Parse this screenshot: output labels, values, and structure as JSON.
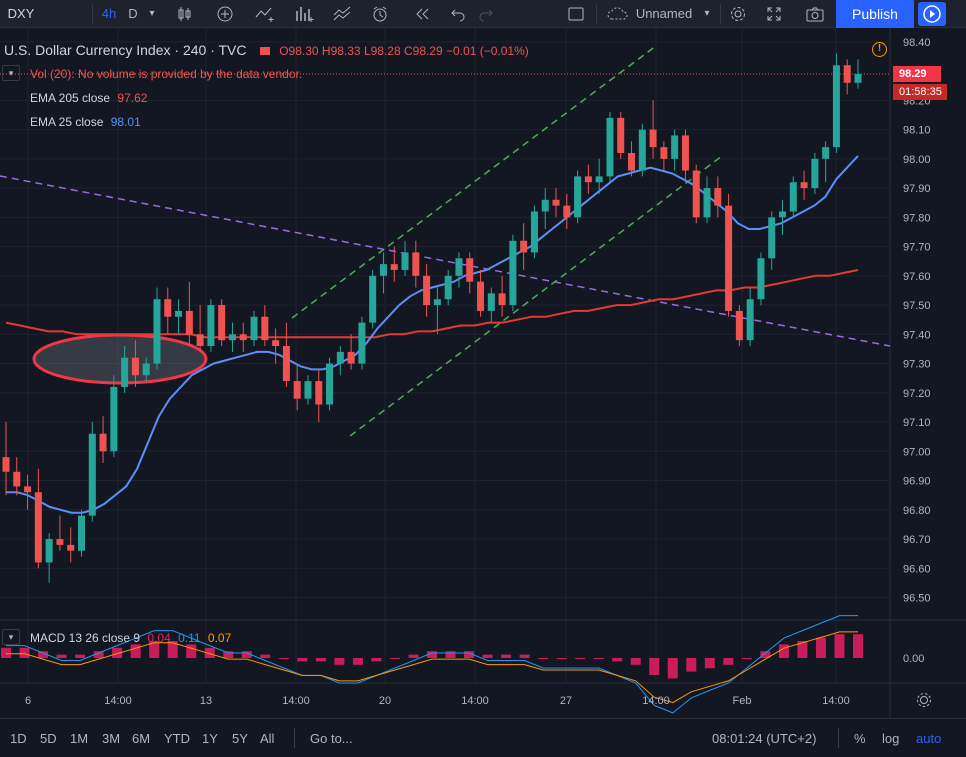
{
  "toolbar": {
    "symbol": "DXY",
    "interval": "4h",
    "d_label": "D",
    "layout_name": "Unnamed",
    "publish_label": "Publish"
  },
  "legend": {
    "title": "U.S. Dollar Currency Index · 240 · TVC",
    "open": "O98.30",
    "high": "H98.33",
    "low": "L98.28",
    "close": "C98.29",
    "change": "−0.01 (−0.01%)",
    "vol_message": "Vol (20): No volume is provided by the data vendor.",
    "ema205_label": "EMA 205 close",
    "ema205_value": "97.62",
    "ema25_label": "EMA 25 close",
    "ema25_value": "98.01",
    "macd_label": "MACD 13 26 close 9",
    "macd_v1": "0.04",
    "macd_v2": "0.11",
    "macd_v3": "0.07"
  },
  "price_axis": {
    "ticks": [
      "98.40",
      "98.20",
      "98.10",
      "98.00",
      "97.90",
      "97.80",
      "97.70",
      "97.60",
      "97.50",
      "97.40",
      "97.30",
      "97.20",
      "97.10",
      "97.00",
      "96.90",
      "96.80",
      "96.70",
      "96.60",
      "96.50"
    ],
    "current_price": "98.29",
    "countdown": "01:58:35",
    "macd_tick": "0.00"
  },
  "time_axis": {
    "labels": [
      "6",
      "14:00",
      "13",
      "14:00",
      "20",
      "14:00",
      "27",
      "14:00",
      "Feb",
      "14:00"
    ]
  },
  "bottom_bar": {
    "ranges": [
      "1D",
      "5D",
      "1M",
      "3M",
      "6M",
      "YTD",
      "1Y",
      "5Y",
      "All"
    ],
    "goto_label": "Go to...",
    "clock": "08:01:24 (UTC+2)",
    "percent_label": "%",
    "log_label": "log",
    "auto_label": "auto"
  },
  "colors": {
    "up": "#26a69a",
    "down": "#ef5350",
    "ema205": "#e53935",
    "ema25": "#5b8ff9",
    "accent": "#2962ff",
    "trend_green": "#4caf50",
    "trend_purple": "#9c6ade"
  },
  "chart_data": {
    "type": "candlestick",
    "ylim": [
      96.43,
      98.42
    ],
    "candles": [
      [
        96.98,
        97.1,
        96.85,
        96.93
      ],
      [
        96.93,
        96.98,
        96.85,
        96.88
      ],
      [
        96.88,
        96.92,
        96.8,
        96.86
      ],
      [
        96.86,
        96.94,
        96.6,
        96.62
      ],
      [
        96.62,
        96.72,
        96.55,
        96.7
      ],
      [
        96.7,
        96.78,
        96.66,
        96.68
      ],
      [
        96.68,
        96.74,
        96.62,
        96.66
      ],
      [
        96.66,
        96.8,
        96.64,
        96.78
      ],
      [
        96.78,
        97.1,
        96.76,
        97.06
      ],
      [
        97.06,
        97.12,
        96.96,
        97.0
      ],
      [
        97.0,
        97.26,
        96.98,
        97.22
      ],
      [
        97.22,
        97.36,
        97.2,
        97.32
      ],
      [
        97.32,
        97.38,
        97.22,
        97.26
      ],
      [
        97.26,
        97.32,
        97.24,
        97.3
      ],
      [
        97.3,
        97.56,
        97.28,
        97.52
      ],
      [
        97.52,
        97.56,
        97.4,
        97.46
      ],
      [
        97.46,
        97.52,
        97.4,
        97.48
      ],
      [
        97.48,
        97.58,
        97.36,
        97.4
      ],
      [
        97.4,
        97.5,
        97.34,
        97.36
      ],
      [
        97.36,
        97.52,
        97.34,
        97.5
      ],
      [
        97.5,
        97.52,
        97.36,
        97.38
      ],
      [
        97.38,
        97.44,
        97.34,
        97.4
      ],
      [
        97.4,
        97.44,
        97.34,
        97.38
      ],
      [
        97.38,
        97.48,
        97.36,
        97.46
      ],
      [
        97.46,
        97.5,
        97.36,
        97.38
      ],
      [
        97.38,
        97.42,
        97.3,
        97.36
      ],
      [
        97.36,
        97.44,
        97.22,
        97.24
      ],
      [
        97.24,
        97.3,
        97.14,
        97.18
      ],
      [
        97.18,
        97.26,
        97.16,
        97.24
      ],
      [
        97.24,
        97.28,
        97.1,
        97.16
      ],
      [
        97.16,
        97.32,
        97.14,
        97.3
      ],
      [
        97.3,
        97.36,
        97.26,
        97.34
      ],
      [
        97.34,
        97.4,
        97.28,
        97.3
      ],
      [
        97.3,
        97.46,
        97.28,
        97.44
      ],
      [
        97.44,
        97.62,
        97.42,
        97.6
      ],
      [
        97.6,
        97.68,
        97.54,
        97.64
      ],
      [
        97.64,
        97.7,
        97.58,
        97.62
      ],
      [
        97.62,
        97.72,
        97.6,
        97.68
      ],
      [
        97.68,
        97.72,
        97.56,
        97.6
      ],
      [
        97.6,
        97.64,
        97.46,
        97.5
      ],
      [
        97.5,
        97.56,
        97.4,
        97.52
      ],
      [
        97.52,
        97.62,
        97.5,
        97.6
      ],
      [
        97.6,
        97.68,
        97.56,
        97.66
      ],
      [
        97.66,
        97.68,
        97.54,
        97.58
      ],
      [
        97.58,
        97.62,
        97.46,
        97.48
      ],
      [
        97.48,
        97.56,
        97.44,
        97.54
      ],
      [
        97.54,
        97.6,
        97.46,
        97.5
      ],
      [
        97.5,
        97.74,
        97.48,
        97.72
      ],
      [
        97.72,
        97.78,
        97.62,
        97.68
      ],
      [
        97.68,
        97.84,
        97.66,
        97.82
      ],
      [
        97.82,
        97.9,
        97.76,
        97.86
      ],
      [
        97.86,
        97.9,
        97.8,
        97.84
      ],
      [
        97.84,
        97.88,
        97.76,
        97.8
      ],
      [
        97.8,
        97.96,
        97.78,
        97.94
      ],
      [
        97.94,
        97.98,
        97.88,
        97.92
      ],
      [
        97.92,
        98.0,
        97.88,
        97.94
      ],
      [
        97.94,
        98.16,
        97.92,
        98.14
      ],
      [
        98.14,
        98.16,
        98.0,
        98.02
      ],
      [
        98.02,
        98.06,
        97.94,
        97.96
      ],
      [
        97.96,
        98.12,
        97.94,
        98.1
      ],
      [
        98.1,
        98.2,
        98.0,
        98.04
      ],
      [
        98.04,
        98.06,
        97.96,
        98.0
      ],
      [
        98.0,
        98.1,
        97.96,
        98.08
      ],
      [
        98.08,
        98.1,
        97.92,
        97.96
      ],
      [
        97.96,
        97.98,
        97.78,
        97.8
      ],
      [
        97.8,
        97.94,
        97.78,
        97.9
      ],
      [
        97.9,
        97.94,
        97.8,
        97.84
      ],
      [
        97.84,
        97.88,
        97.46,
        97.48
      ],
      [
        97.48,
        97.5,
        97.36,
        97.38
      ],
      [
        97.38,
        97.56,
        97.36,
        97.52
      ],
      [
        97.52,
        97.68,
        97.5,
        97.66
      ],
      [
        97.66,
        97.82,
        97.62,
        97.8
      ],
      [
        97.8,
        97.86,
        97.74,
        97.82
      ],
      [
        97.82,
        97.94,
        97.8,
        97.92
      ],
      [
        97.92,
        97.96,
        97.86,
        97.9
      ],
      [
        97.9,
        98.02,
        97.88,
        98.0
      ],
      [
        98.0,
        98.06,
        97.92,
        98.04
      ],
      [
        98.04,
        98.36,
        98.02,
        98.32
      ],
      [
        98.32,
        98.34,
        98.22,
        98.26
      ],
      [
        98.26,
        98.34,
        98.24,
        98.29
      ]
    ],
    "ema25": [
      96.86,
      96.86,
      96.85,
      96.83,
      96.81,
      96.8,
      96.79,
      96.79,
      96.8,
      96.82,
      96.85,
      96.88,
      96.94,
      97.03,
      97.12,
      97.18,
      97.22,
      97.26,
      97.28,
      97.3,
      97.31,
      97.32,
      97.33,
      97.34,
      97.34,
      97.33,
      97.31,
      97.29,
      97.28,
      97.28,
      97.29,
      97.31,
      97.33,
      97.37,
      97.42,
      97.46,
      97.5,
      97.53,
      97.55,
      97.56,
      97.57,
      97.58,
      97.6,
      97.61,
      97.62,
      97.64,
      97.66,
      97.68,
      97.7,
      97.73,
      97.76,
      97.79,
      97.82,
      97.85,
      97.88,
      97.91,
      97.94,
      97.95,
      97.96,
      97.97,
      97.96,
      97.95,
      97.93,
      97.91,
      97.88,
      97.85,
      97.82,
      97.78,
      97.76,
      97.76,
      97.77,
      97.78,
      97.8,
      97.82,
      97.84,
      97.87,
      97.93,
      97.97,
      98.01
    ],
    "ema205": [
      97.44,
      97.43,
      97.42,
      97.41,
      97.41,
      97.4,
      97.4,
      97.4,
      97.4,
      97.4,
      97.4,
      97.4,
      97.4,
      97.4,
      97.39,
      97.39,
      97.39,
      97.39,
      97.39,
      97.39,
      97.39,
      97.39,
      97.39,
      97.39,
      97.39,
      97.39,
      97.39,
      97.4,
      97.4,
      97.41,
      97.41,
      97.42,
      97.43,
      97.43,
      97.44,
      97.44,
      97.45,
      97.46,
      97.46,
      97.47,
      97.48,
      97.48,
      97.49,
      97.5,
      97.5,
      97.51,
      97.52,
      97.52,
      97.53,
      97.54,
      97.55,
      97.55,
      97.56,
      97.56,
      97.57,
      97.58,
      97.59,
      97.6,
      97.6,
      97.61,
      97.62
    ],
    "macd_hist": [
      0.03,
      0.03,
      0.02,
      0.01,
      0.01,
      0.02,
      0.03,
      0.04,
      0.05,
      0.05,
      0.04,
      0.03,
      0.02,
      0.02,
      0.01,
      0.0,
      -0.01,
      -0.01,
      -0.02,
      -0.02,
      -0.01,
      0.0,
      0.01,
      0.02,
      0.02,
      0.02,
      0.01,
      0.01,
      0.01,
      0.0,
      0.0,
      0.0,
      0.0,
      -0.01,
      -0.02,
      -0.05,
      -0.06,
      -0.04,
      -0.03,
      -0.02,
      0.0,
      0.02,
      0.04,
      0.05,
      0.06,
      0.07,
      0.07
    ]
  }
}
